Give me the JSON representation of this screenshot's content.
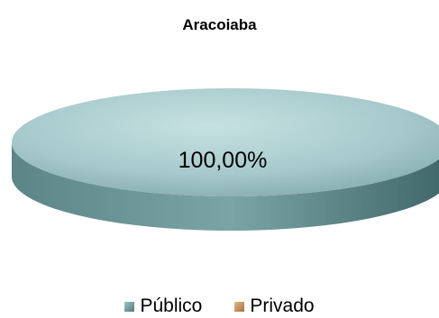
{
  "chart_data": {
    "type": "pie",
    "title": "Aracoiaba",
    "categories": [
      "Público",
      "Privado"
    ],
    "values": [
      100.0,
      0.0
    ],
    "data_labels": [
      "100,00%"
    ],
    "colors": [
      "#6f9a9c",
      "#c2925e"
    ],
    "legend_position": "bottom",
    "style": "3d"
  }
}
